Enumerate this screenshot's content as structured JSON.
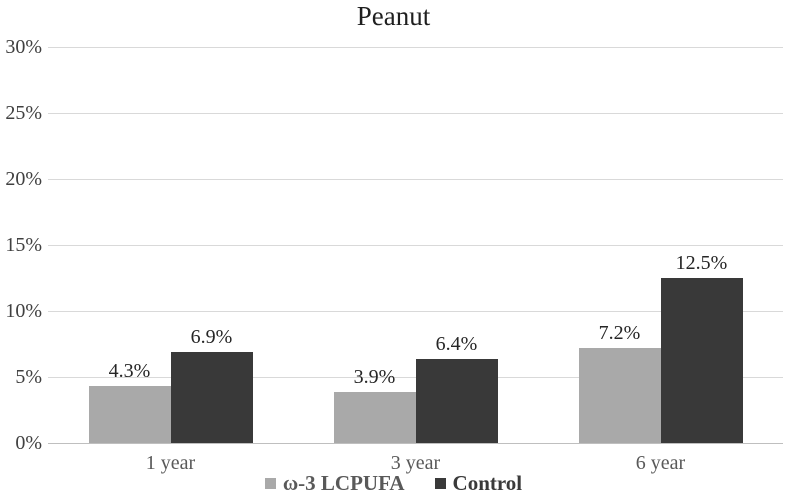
{
  "chart_data": {
    "type": "bar",
    "title": "Peanut",
    "categories": [
      "1 year",
      "3 year",
      "6 year"
    ],
    "series": [
      {
        "name": "ω-3 LCPUFA",
        "color": "#a9a9a9",
        "label_color": "#595959",
        "values": [
          4.3,
          3.9,
          7.2
        ]
      },
      {
        "name": "Control",
        "color": "#393939",
        "label_color": "#3a3a3a",
        "values": [
          6.9,
          6.4,
          12.5
        ]
      }
    ],
    "data_labels": [
      [
        "4.3%",
        "3.9%",
        "7.2%"
      ],
      [
        "6.9%",
        "6.4%",
        "12.5%"
      ]
    ],
    "ylim": [
      0,
      30
    ],
    "ytick_step": 5,
    "ytick_labels": [
      "0%",
      "5%",
      "10%",
      "15%",
      "20%",
      "25%",
      "30%"
    ],
    "grid": true,
    "legend_position": "bottom"
  },
  "palette": {
    "gridline": "#d9d9d9",
    "baseline": "#bfbfbf",
    "ytick_text": "#404040",
    "datalabel_text": "#262626",
    "category_text": "#595959",
    "title_text": "#1f1f1f"
  }
}
